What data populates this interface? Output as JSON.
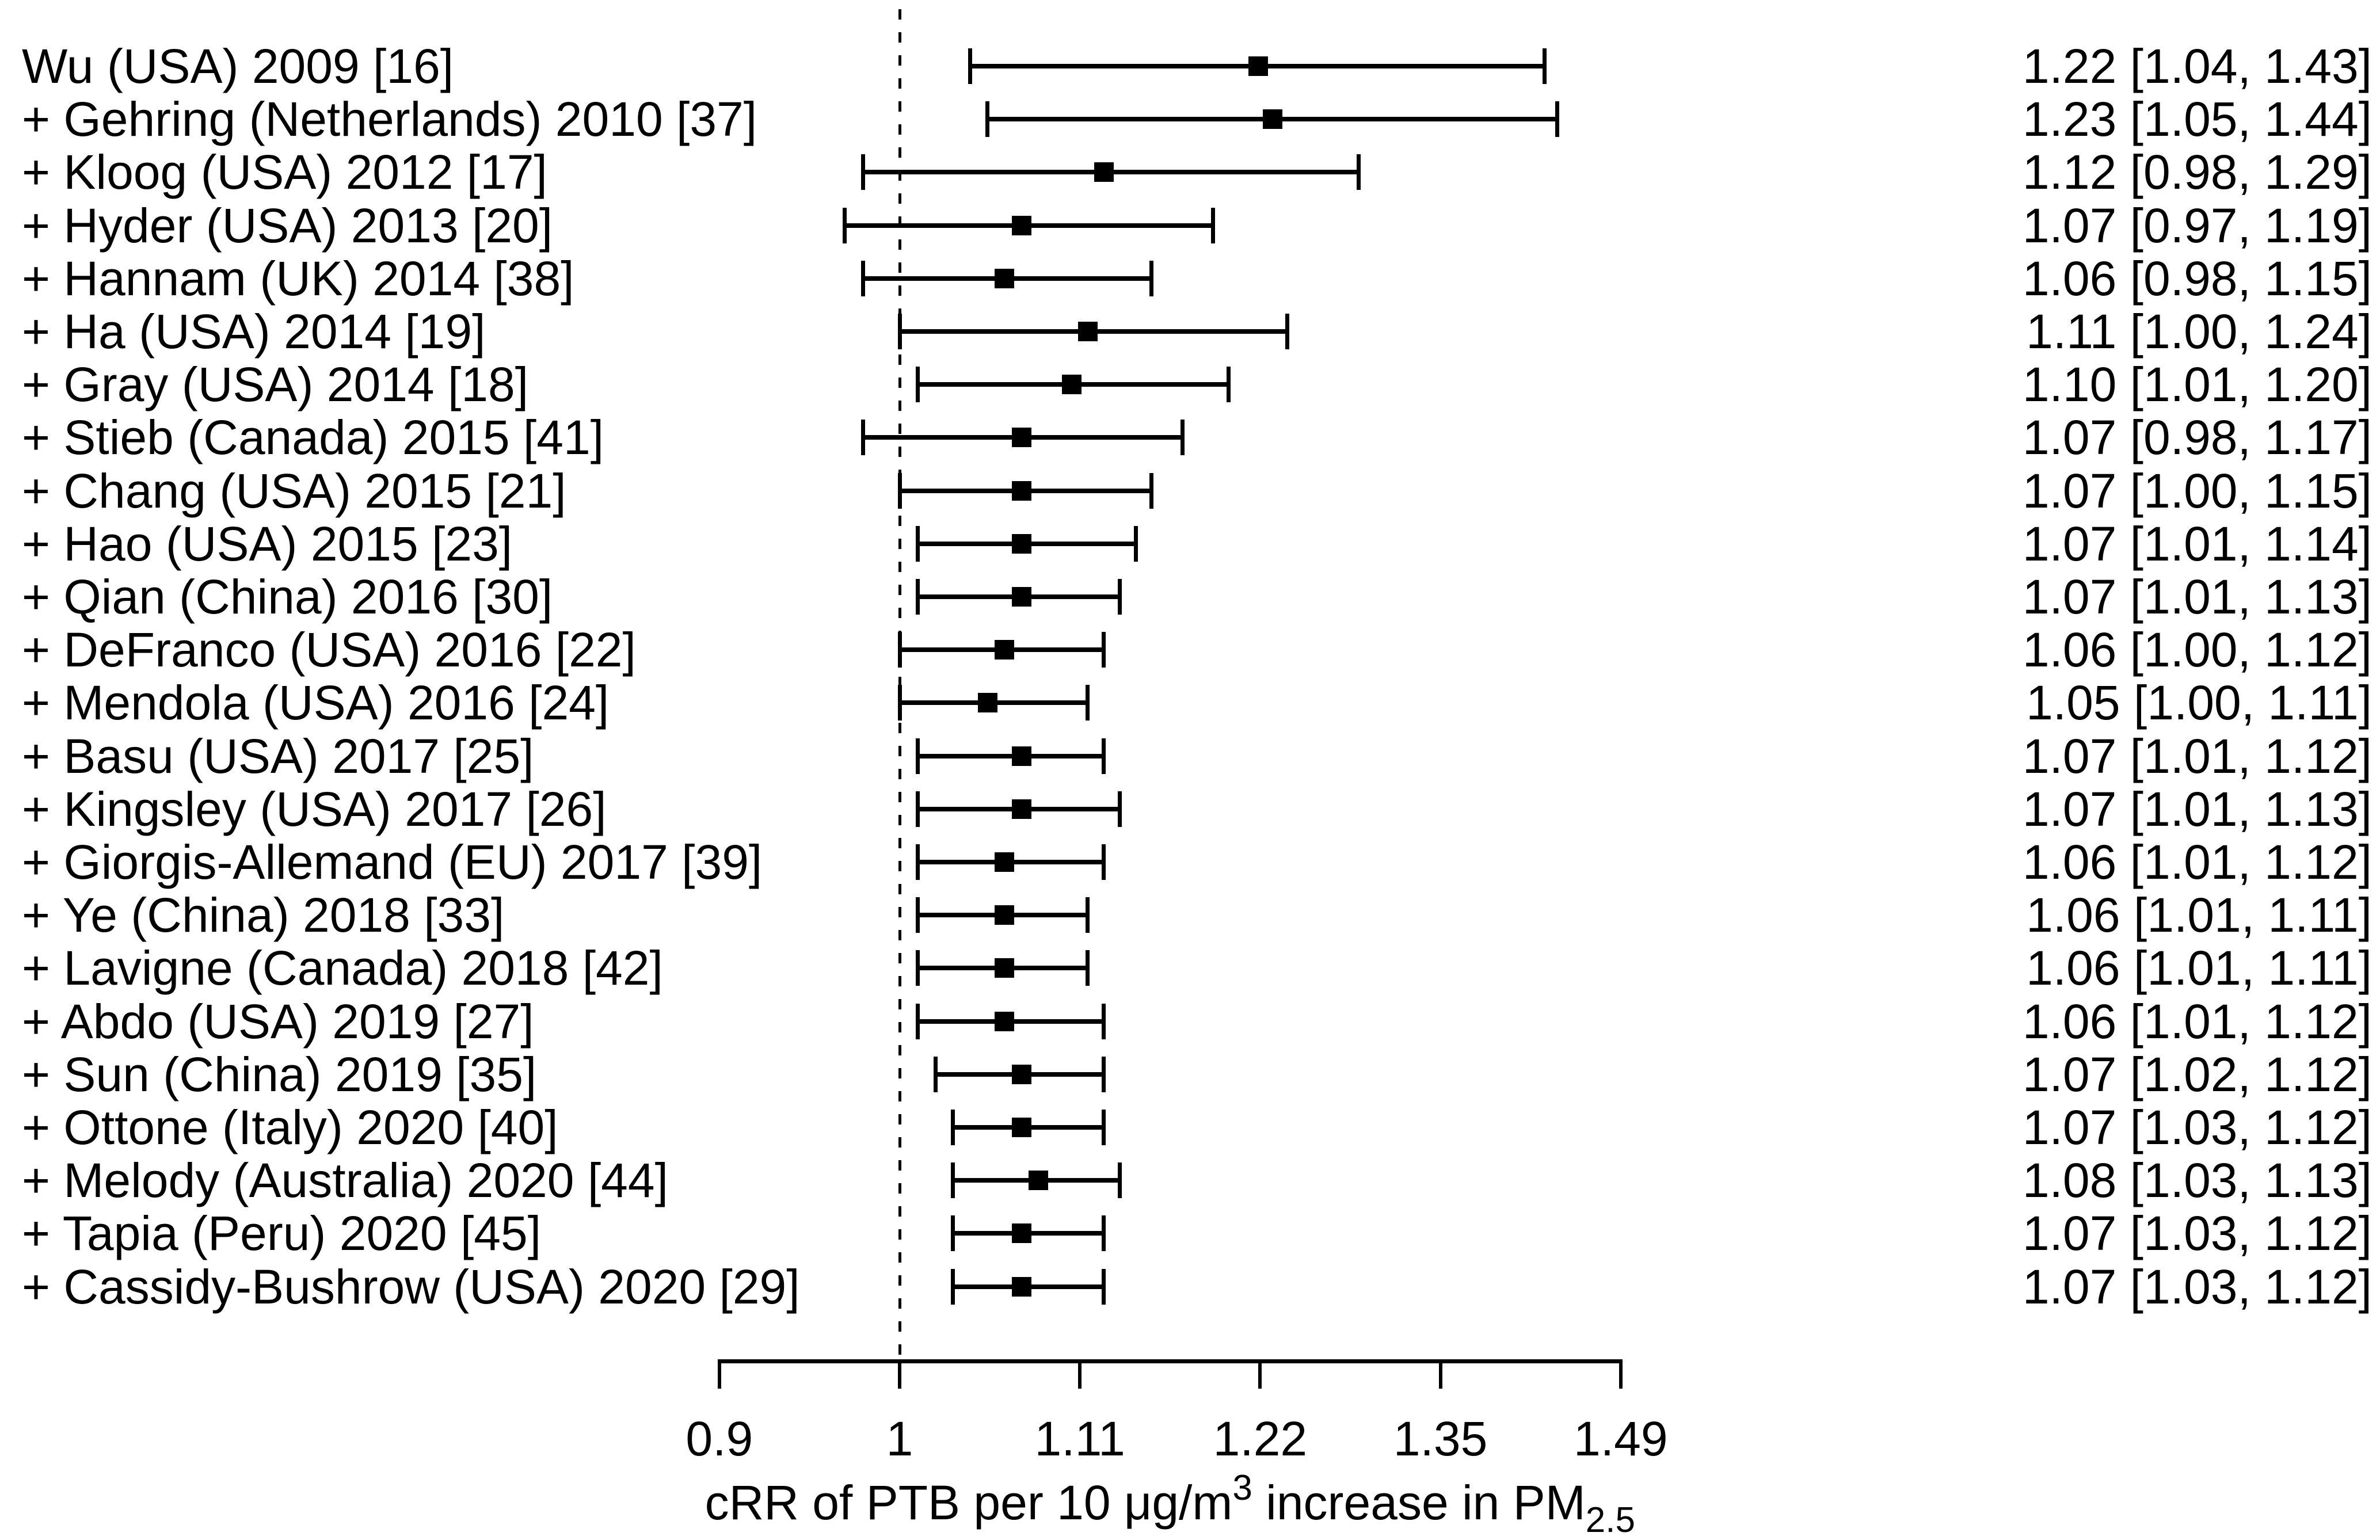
{
  "chart_data": {
    "type": "forest",
    "title": "",
    "xlabel_parts": {
      "pre": "cRR of PTB per 10 μg/m",
      "sup": "3",
      "mid": " increase in PM",
      "sub": "2.5"
    },
    "x_axis": {
      "scale": "log",
      "tick_labels": [
        "0.9",
        "1",
        "1.11",
        "1.22",
        "1.35",
        "1.49"
      ],
      "tick_logs": [
        -0.1,
        0,
        0.1,
        0.2,
        0.3,
        0.4
      ],
      "range_labels": [
        0.9,
        1.49
      ],
      "reference_value": 1,
      "grid": false
    },
    "studies": [
      {
        "label": "Wu (USA) 2009 [16]",
        "estimate": 1.22,
        "ci_lower": 1.04,
        "ci_upper": 1.43,
        "annotation": "1.22 [1.04, 1.43]"
      },
      {
        "label": "+ Gehring (Netherlands) 2010 [37]",
        "estimate": 1.23,
        "ci_lower": 1.05,
        "ci_upper": 1.44,
        "annotation": "1.23 [1.05, 1.44]"
      },
      {
        "label": "+ Kloog (USA) 2012 [17]",
        "estimate": 1.12,
        "ci_lower": 0.98,
        "ci_upper": 1.29,
        "annotation": "1.12 [0.98, 1.29]"
      },
      {
        "label": "+ Hyder (USA) 2013 [20]",
        "estimate": 1.07,
        "ci_lower": 0.97,
        "ci_upper": 1.19,
        "annotation": "1.07 [0.97, 1.19]"
      },
      {
        "label": "+ Hannam (UK) 2014 [38]",
        "estimate": 1.06,
        "ci_lower": 0.98,
        "ci_upper": 1.15,
        "annotation": "1.06 [0.98, 1.15]"
      },
      {
        "label": "+ Ha (USA) 2014 [19]",
        "estimate": 1.11,
        "ci_lower": 1.0,
        "ci_upper": 1.24,
        "annotation": "1.11 [1.00, 1.24]"
      },
      {
        "label": "+ Gray (USA) 2014 [18]",
        "estimate": 1.1,
        "ci_lower": 1.01,
        "ci_upper": 1.2,
        "annotation": "1.10 [1.01, 1.20]"
      },
      {
        "label": "+ Stieb (Canada) 2015 [41]",
        "estimate": 1.07,
        "ci_lower": 0.98,
        "ci_upper": 1.17,
        "annotation": "1.07 [0.98, 1.17]"
      },
      {
        "label": "+ Chang (USA) 2015 [21]",
        "estimate": 1.07,
        "ci_lower": 1.0,
        "ci_upper": 1.15,
        "annotation": "1.07 [1.00, 1.15]"
      },
      {
        "label": "+ Hao (USA) 2015 [23]",
        "estimate": 1.07,
        "ci_lower": 1.01,
        "ci_upper": 1.14,
        "annotation": "1.07 [1.01, 1.14]"
      },
      {
        "label": "+ Qian (China) 2016 [30]",
        "estimate": 1.07,
        "ci_lower": 1.01,
        "ci_upper": 1.13,
        "annotation": "1.07 [1.01, 1.13]"
      },
      {
        "label": "+ DeFranco (USA) 2016 [22]",
        "estimate": 1.06,
        "ci_lower": 1.0,
        "ci_upper": 1.12,
        "annotation": "1.06 [1.00, 1.12]"
      },
      {
        "label": "+ Mendola (USA) 2016 [24]",
        "estimate": 1.05,
        "ci_lower": 1.0,
        "ci_upper": 1.11,
        "annotation": "1.05 [1.00, 1.11]"
      },
      {
        "label": "+ Basu (USA) 2017 [25]",
        "estimate": 1.07,
        "ci_lower": 1.01,
        "ci_upper": 1.12,
        "annotation": "1.07 [1.01, 1.12]"
      },
      {
        "label": "+ Kingsley (USA) 2017 [26]",
        "estimate": 1.07,
        "ci_lower": 1.01,
        "ci_upper": 1.13,
        "annotation": "1.07 [1.01, 1.13]"
      },
      {
        "label": "+ Giorgis-Allemand (EU) 2017 [39]",
        "estimate": 1.06,
        "ci_lower": 1.01,
        "ci_upper": 1.12,
        "annotation": "1.06 [1.01, 1.12]"
      },
      {
        "label": "+ Ye (China) 2018 [33]",
        "estimate": 1.06,
        "ci_lower": 1.01,
        "ci_upper": 1.11,
        "annotation": "1.06 [1.01, 1.11]"
      },
      {
        "label": "+ Lavigne (Canada) 2018 [42]",
        "estimate": 1.06,
        "ci_lower": 1.01,
        "ci_upper": 1.11,
        "annotation": "1.06 [1.01, 1.11]"
      },
      {
        "label": "+ Abdo (USA) 2019 [27]",
        "estimate": 1.06,
        "ci_lower": 1.01,
        "ci_upper": 1.12,
        "annotation": "1.06 [1.01, 1.12]"
      },
      {
        "label": "+ Sun (China) 2019 [35]",
        "estimate": 1.07,
        "ci_lower": 1.02,
        "ci_upper": 1.12,
        "annotation": "1.07 [1.02, 1.12]"
      },
      {
        "label": "+ Ottone (Italy) 2020 [40]",
        "estimate": 1.07,
        "ci_lower": 1.03,
        "ci_upper": 1.12,
        "annotation": "1.07 [1.03, 1.12]"
      },
      {
        "label": "+ Melody (Australia) 2020 [44]",
        "estimate": 1.08,
        "ci_lower": 1.03,
        "ci_upper": 1.13,
        "annotation": "1.08 [1.03, 1.13]"
      },
      {
        "label": "+ Tapia (Peru) 2020 [45]",
        "estimate": 1.07,
        "ci_lower": 1.03,
        "ci_upper": 1.12,
        "annotation": "1.07 [1.03, 1.12]"
      },
      {
        "label": "+ Cassidy-Bushrow (USA) 2020 [29]",
        "estimate": 1.07,
        "ci_lower": 1.03,
        "ci_upper": 1.12,
        "annotation": "1.07 [1.03, 1.12]"
      }
    ]
  },
  "colors": {
    "foreground": "#000000",
    "background": "#ffffff"
  }
}
